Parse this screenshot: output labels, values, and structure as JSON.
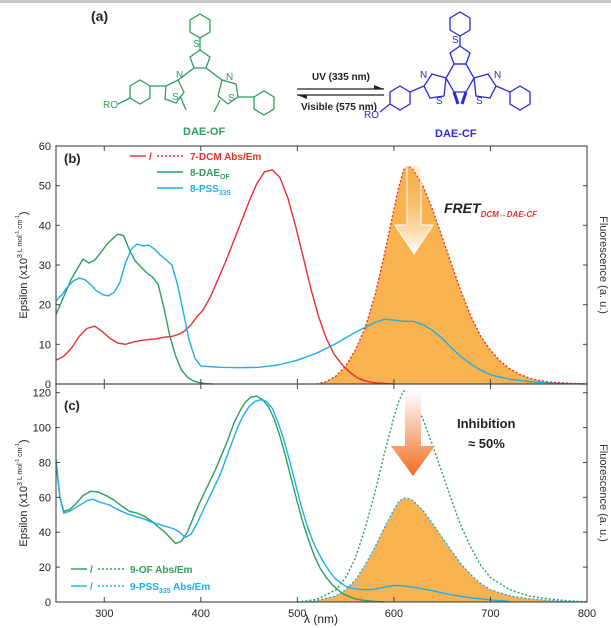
{
  "colors": {
    "red": "#e8312d",
    "green": "#2e9e5b",
    "cyan": "#1eaee8",
    "blue": "#2a2ad6",
    "fill": "#f7a531",
    "axis": "#444444",
    "text": "#222222"
  },
  "scheme": {
    "panel_label": "(a)",
    "left_molecule": "DAE-OF",
    "right_molecule": "DAE-CF",
    "arrow_forward_label": "UV (335 nm)",
    "arrow_back_label": "Visible (575 nm)",
    "ro_label": "RO"
  },
  "chart_data": [
    {
      "type": "line",
      "panel_label": "(b)",
      "ylabel": "Epsilon (x10",
      "ylabel_sup": "3",
      "ylabel_unit": " L mol",
      "ylabel_unit_sup1": "-1",
      "ylabel_unit_mid": " cm",
      "ylabel_unit_sup2": "-1",
      "ylabel_close": ")",
      "right_label": "Fluorescence (a. u.)",
      "xlim": [
        250,
        800
      ],
      "ylim": [
        0,
        60
      ],
      "yticks": [
        "0",
        "10",
        "20",
        "30",
        "40",
        "50",
        "60"
      ],
      "legend": [
        {
          "prefix": "/",
          "name": "7-DCM Abs/Em",
          "color": "red"
        },
        {
          "prefix": "",
          "name": "8-DAE",
          "sub": "OF",
          "color": "green"
        },
        {
          "prefix": "",
          "name": "8-PSS",
          "sub": "335",
          "color": "cyan"
        }
      ],
      "annotation": {
        "text": "FRET",
        "sub": "DCM→DAE-CF"
      },
      "series": [
        {
          "name": "7-DCM Abs",
          "color": "red",
          "style": "solid",
          "x": [
            250,
            258,
            266,
            274,
            282,
            290,
            298,
            306,
            314,
            322,
            330,
            338,
            346,
            354,
            362,
            370,
            378,
            384,
            390,
            396,
            402,
            410,
            418,
            426,
            434,
            442,
            450,
            458,
            466,
            474,
            482,
            490,
            498,
            506,
            514,
            522,
            530,
            538,
            546,
            554,
            562,
            570,
            580,
            600
          ],
          "y": [
            6,
            7,
            9,
            12,
            14,
            14.6,
            13.2,
            11.5,
            10.3,
            10,
            10.6,
            11,
            11.2,
            11.4,
            11.8,
            12,
            12.6,
            13.5,
            15,
            17,
            18.5,
            22,
            26.5,
            31,
            36,
            41,
            46,
            50.5,
            53.5,
            54,
            52,
            47,
            40,
            32,
            24,
            17,
            11.5,
            7.5,
            5,
            3,
            1.6,
            0.8,
            0.3,
            0
          ]
        },
        {
          "name": "8-DAE OF",
          "color": "green",
          "style": "solid",
          "x": [
            250,
            258,
            266,
            272,
            278,
            284,
            290,
            296,
            302,
            308,
            314,
            320,
            326,
            332,
            338,
            344,
            350,
            356,
            362,
            368,
            374,
            380,
            386,
            392,
            398,
            404,
            412
          ],
          "y": [
            17.5,
            22,
            26.5,
            29,
            31.5,
            30.5,
            31.2,
            33,
            35,
            36.5,
            37.8,
            37.4,
            33.8,
            31,
            29.5,
            28,
            27,
            25,
            19,
            12,
            7,
            3.5,
            1.8,
            0.8,
            0.4,
            0.1,
            0
          ]
        },
        {
          "name": "8-PSS 335",
          "color": "cyan",
          "style": "solid",
          "x": [
            250,
            256,
            262,
            268,
            274,
            280,
            286,
            292,
            298,
            304,
            310,
            316,
            322,
            328,
            334,
            340,
            346,
            352,
            358,
            364,
            370,
            376,
            382,
            388,
            394,
            400,
            420,
            440,
            460,
            480,
            500,
            520,
            540,
            560,
            580,
            590,
            600,
            610,
            620,
            630,
            640,
            650,
            660,
            670,
            680,
            690,
            700,
            720,
            740,
            760,
            780,
            800
          ],
          "y": [
            21,
            22.5,
            24.5,
            26,
            26.7,
            26.3,
            25,
            23.5,
            22.6,
            22.2,
            23,
            25.5,
            30.5,
            34,
            35.3,
            34.8,
            35,
            34,
            32.5,
            31.3,
            30,
            25,
            18,
            11,
            6.5,
            4.5,
            4.2,
            4.1,
            4.2,
            4.8,
            6,
            7.8,
            10.2,
            13,
            15.5,
            16.3,
            16.1,
            15.8,
            15.8,
            15,
            13.5,
            11.5,
            9,
            6.8,
            5,
            3.5,
            2.3,
            1.2,
            0.6,
            0.3,
            0.1,
            0
          ]
        },
        {
          "name": "7-DCM Em",
          "color": "red",
          "style": "dotted",
          "filled": true,
          "x": [
            520,
            530,
            540,
            550,
            560,
            570,
            580,
            590,
            600,
            605,
            610,
            615,
            620,
            630,
            640,
            650,
            660,
            670,
            680,
            690,
            700,
            710,
            720,
            730,
            740,
            750,
            760,
            780,
            800
          ],
          "y": [
            0,
            0.6,
            2,
            4.5,
            8.5,
            14,
            22,
            32.5,
            44,
            49.5,
            54,
            55,
            54,
            50,
            44,
            37,
            30,
            23,
            17,
            12,
            8.5,
            5.8,
            3.8,
            2.5,
            1.5,
            0.9,
            0.5,
            0.2,
            0
          ]
        }
      ]
    },
    {
      "type": "line",
      "panel_label": "(c)",
      "ylabel": "Epsilon (x10",
      "ylabel_sup": "3",
      "ylabel_unit": " L mol",
      "ylabel_unit_sup1": "-1",
      "ylabel_unit_mid": " cm",
      "ylabel_unit_sup2": "-1",
      "ylabel_close": ")",
      "right_label": "Fluorescence (a. u.)",
      "xlabel": "λ (nm)",
      "xlim": [
        250,
        800
      ],
      "ylim": [
        0,
        125
      ],
      "yticks": [
        "0",
        "20",
        "40",
        "60",
        "80",
        "100",
        "120"
      ],
      "xticks": [
        "300",
        "400",
        "500",
        "600",
        "700",
        "800"
      ],
      "legend": [
        {
          "prefix": "/",
          "name": "9-OF Abs/Em",
          "color": "green"
        },
        {
          "prefix": "/",
          "name": "9-PSS",
          "sub": "335",
          "tail": " Abs/Em",
          "color": "cyan"
        }
      ],
      "annotation": {
        "text": "Inhibition",
        "text2": "≈ 50%"
      },
      "series": [
        {
          "name": "9-OF Abs",
          "color": "green",
          "style": "solid",
          "x": [
            250,
            254,
            258,
            264,
            270,
            278,
            286,
            294,
            302,
            310,
            318,
            326,
            334,
            342,
            350,
            356,
            362,
            368,
            374,
            380,
            386,
            392,
            398,
            404,
            410,
            416,
            422,
            428,
            434,
            440,
            446,
            452,
            458,
            464,
            470,
            476,
            482,
            488,
            494,
            500,
            506,
            512,
            518,
            524,
            530,
            536,
            542,
            548,
            554,
            560,
            570,
            580,
            590
          ],
          "y": [
            80,
            60,
            52,
            53,
            56,
            61,
            63.5,
            63,
            61,
            58.5,
            55,
            52,
            51,
            49,
            46,
            43,
            40.5,
            37,
            33.5,
            35,
            40,
            48,
            56,
            63,
            70,
            77,
            85,
            93,
            102,
            109,
            114.5,
            117.5,
            118,
            116,
            112,
            105,
            95,
            83,
            70,
            57,
            45,
            35,
            26,
            19,
            14,
            10,
            7,
            4.5,
            3,
            1.8,
            0.8,
            0.3,
            0
          ]
        },
        {
          "name": "9-PSS 335 Abs",
          "color": "cyan",
          "style": "solid",
          "x": [
            250,
            254,
            258,
            264,
            270,
            276,
            282,
            288,
            294,
            300,
            306,
            312,
            318,
            324,
            330,
            336,
            342,
            348,
            354,
            360,
            366,
            372,
            378,
            384,
            390,
            396,
            402,
            408,
            414,
            420,
            426,
            432,
            438,
            444,
            450,
            456,
            462,
            468,
            474,
            480,
            486,
            492,
            498,
            504,
            510,
            516,
            522,
            528,
            534,
            540,
            550,
            560,
            570,
            580,
            590,
            600,
            610,
            620,
            630,
            640,
            650,
            660,
            680,
            700,
            720
          ],
          "y": [
            82,
            60,
            51,
            52,
            54,
            56,
            58,
            59,
            57.5,
            56.5,
            55.5,
            53.5,
            52,
            50.5,
            49.5,
            48.5,
            47.5,
            46,
            45,
            44,
            43,
            42,
            40,
            37,
            39,
            45,
            52,
            59,
            66,
            73,
            82,
            91,
            100,
            107,
            112,
            115,
            116,
            115,
            111,
            103,
            93,
            81,
            68,
            55,
            44,
            35,
            28,
            22,
            17,
            13,
            9,
            7.5,
            7,
            7.3,
            8.5,
            9.5,
            9.2,
            8.5,
            7.5,
            6.5,
            5.2,
            4,
            2.4,
            1.2,
            0.3
          ]
        },
        {
          "name": "9-OF Em",
          "color": "green",
          "style": "dotted",
          "x": [
            500,
            520,
            540,
            550,
            560,
            570,
            580,
            590,
            600,
            605,
            610,
            615,
            620,
            630,
            640,
            650,
            660,
            670,
            680,
            690,
            700,
            720,
            740,
            760,
            780,
            800
          ],
          "y": [
            0,
            1.5,
            7,
            14,
            25,
            42,
            62,
            85,
            106,
            115,
            121,
            120,
            116,
            105,
            90,
            74,
            58,
            43,
            31,
            21,
            14,
            7,
            3.5,
            1.8,
            0.7,
            0
          ]
        },
        {
          "name": "9-PSS 335 Em",
          "color": "cyan",
          "style": "dotted",
          "filled": true,
          "x": [
            500,
            520,
            540,
            550,
            560,
            570,
            580,
            590,
            600,
            605,
            610,
            615,
            620,
            630,
            640,
            650,
            660,
            670,
            680,
            690,
            700,
            720,
            740,
            760,
            780,
            800
          ],
          "y": [
            0,
            0.8,
            3.5,
            7,
            12.5,
            21,
            31,
            42.5,
            53,
            57.5,
            59.5,
            59.3,
            58,
            52.5,
            45,
            37,
            29,
            21.5,
            15.5,
            10.5,
            7,
            3.5,
            1.8,
            0.9,
            0.4,
            0
          ]
        }
      ]
    }
  ]
}
